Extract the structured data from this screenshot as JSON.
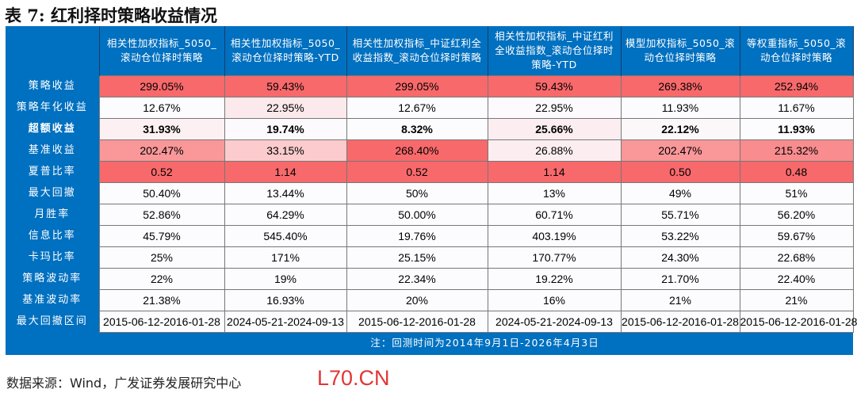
{
  "title": "表 7:  红利择时策略收益情况",
  "columns": [
    "相关性加权指标_5050_滚动仓位择时策略",
    "相关性加权指标_5050_滚动仓位择时策略-YTD",
    "相关性加权指标_中证红利全收益指数_滚动仓位择时策略",
    "相关性加权指标_中证红利全收益指数_滚动仓位择时策略-YTD",
    "模型加权指标_5050_滚动仓位择时策略",
    "等权重指标_5050_滚动仓位择时策略"
  ],
  "rows": [
    {
      "label": "策略收益",
      "values": [
        "299.05%",
        "59.43%",
        "299.05%",
        "59.43%",
        "269.38%",
        "252.94%"
      ],
      "colors": [
        "#F8696B",
        "#F8696B",
        "#F8696B",
        "#F8696B",
        "#F8696B",
        "#F8696B"
      ]
    },
    {
      "label": "策略年化收益",
      "values": [
        "12.67%",
        "22.95%",
        "12.67%",
        "22.95%",
        "11.93%",
        "11.67%"
      ],
      "colors": [
        "#FCFCFF",
        "#FCE9EB",
        "#FCFCFF",
        "#FCFAFC",
        "#FCFCFF",
        "#FCFCFF"
      ]
    },
    {
      "label": "超额收益",
      "values": [
        "31.93%",
        "19.74%",
        "8.32%",
        "25.66%",
        "22.12%",
        "11.93%"
      ],
      "colors": [
        "#FCF0F2",
        "#FCFAFC",
        "#FCFCFF",
        "#FCEEF0",
        "#FCF8FA",
        "#FCFCFF"
      ],
      "bold": true
    },
    {
      "label": "基准收益",
      "values": [
        "202.47%",
        "33.15%",
        "268.40%",
        "26.88%",
        "202.47%",
        "215.32%"
      ],
      "colors": [
        "#F99799",
        "#FBCBCD",
        "#F8696B",
        "#FCEEF0",
        "#F99799",
        "#F98C8E"
      ]
    },
    {
      "label": "夏普比率",
      "values": [
        "0.52",
        "1.14",
        "0.52",
        "1.14",
        "0.50",
        "0.48"
      ],
      "colors": [
        "#F8696B",
        "#F8696B",
        "#F8696B",
        "#F8696B",
        "#F8696B",
        "#F8696B"
      ]
    },
    {
      "label": "最大回撤",
      "values": [
        "50.40%",
        "13.44%",
        "50%",
        "13%",
        "49%",
        "51%"
      ]
    },
    {
      "label": "月胜率",
      "values": [
        "52.86%",
        "64.29%",
        "50.00%",
        "60.71%",
        "55.71%",
        "56.20%"
      ]
    },
    {
      "label": "信息比率",
      "values": [
        "45.79%",
        "545.40%",
        "19.76%",
        "403.19%",
        "53.22%",
        "59.67%"
      ]
    },
    {
      "label": "卡玛比率",
      "values": [
        "25%",
        "171%",
        "25.15%",
        "170.77%",
        "24.30%",
        "22.68%"
      ]
    },
    {
      "label": "策略波动率",
      "values": [
        "22%",
        "19%",
        "22.34%",
        "19.22%",
        "21.70%",
        "22.40%"
      ]
    },
    {
      "label": "基准波动率",
      "values": [
        "21.38%",
        "16.93%",
        "20%",
        "16%",
        "21%",
        "21%"
      ]
    },
    {
      "label": "最大回撤区间",
      "values": [
        "2015-06-12-2016-01-28",
        "2024-05-21-2024-09-13",
        "2015-06-12-2016-01-28",
        "2024-05-21-2024-09-13",
        "2015-06-12-2016-01-28",
        "2015-06-12-2016-01-28"
      ]
    }
  ],
  "note": "注：回测时间为2014年9月1日-2026年4月3日",
  "source": "数据来源：Wind，广发证券发展研究中心",
  "watermark": "L70.CN",
  "colors": {
    "header": "#0070C0",
    "high": "#F8696B"
  }
}
